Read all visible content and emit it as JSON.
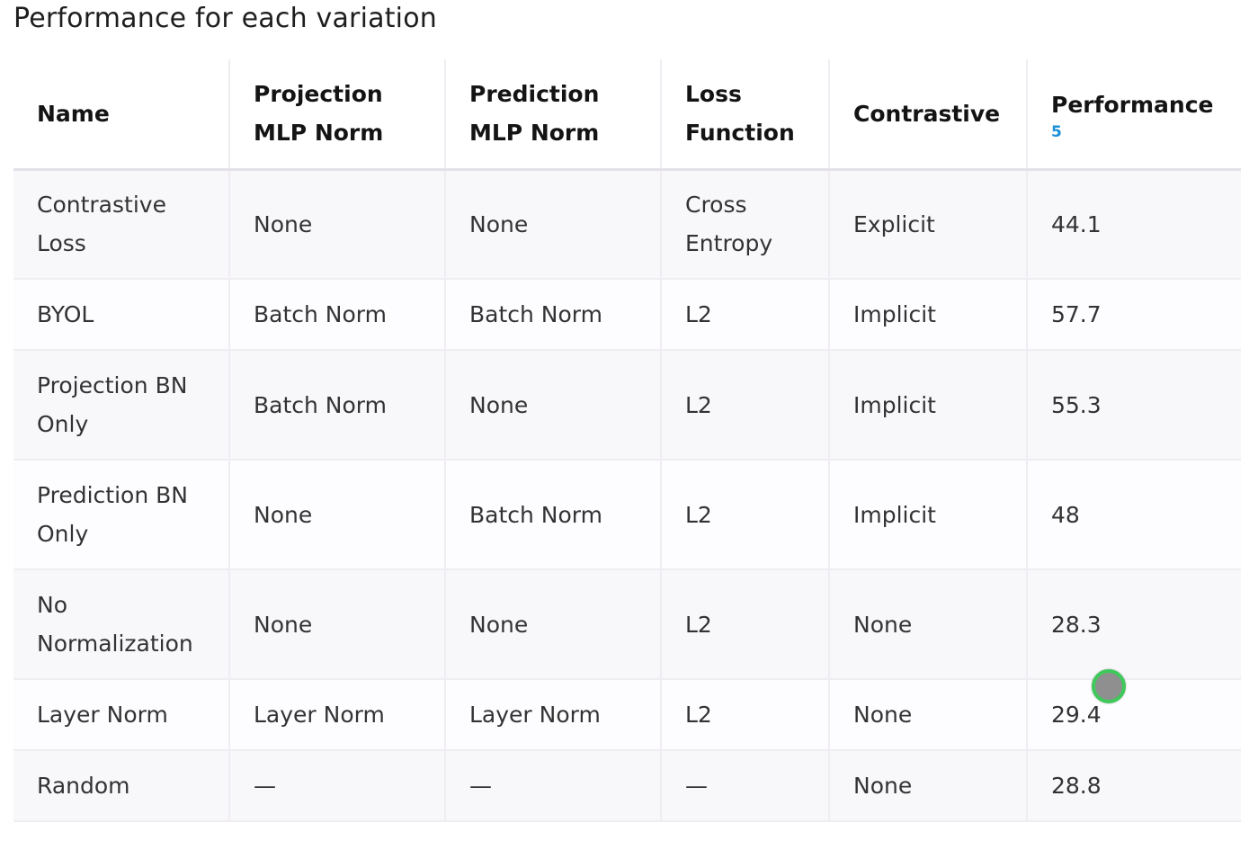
{
  "title": "Performance for each variation",
  "table": {
    "headers": [
      {
        "label": "Name"
      },
      {
        "label": "Projection MLP Norm"
      },
      {
        "label": "Prediction MLP Norm"
      },
      {
        "label": "Loss Function"
      },
      {
        "label": "Contrastive"
      },
      {
        "label": "Performance",
        "ref": "5"
      }
    ],
    "rows": [
      [
        "Contrastive Loss",
        "None",
        "None",
        "Cross Entropy",
        "Explicit",
        "44.1"
      ],
      [
        "BYOL",
        "Batch Norm",
        "Batch Norm",
        "L2",
        "Implicit",
        "57.7"
      ],
      [
        "Projection BN Only",
        "Batch Norm",
        "None",
        "L2",
        "Implicit",
        "55.3"
      ],
      [
        "Prediction BN Only",
        "None",
        "Batch Norm",
        "L2",
        "Implicit",
        "48"
      ],
      [
        "No Normalization",
        "None",
        "None",
        "L2",
        "None",
        "28.3"
      ],
      [
        "Layer Norm",
        "Layer Norm",
        "Layer Norm",
        "L2",
        "None",
        "29.4"
      ],
      [
        "Random",
        "—",
        "—",
        "—",
        "None",
        "28.8"
      ]
    ]
  },
  "colors": {
    "ref_link": "#1a8fd6",
    "cursor_ring": "#3ec95a",
    "cursor_fill": "#8f8f8f"
  }
}
